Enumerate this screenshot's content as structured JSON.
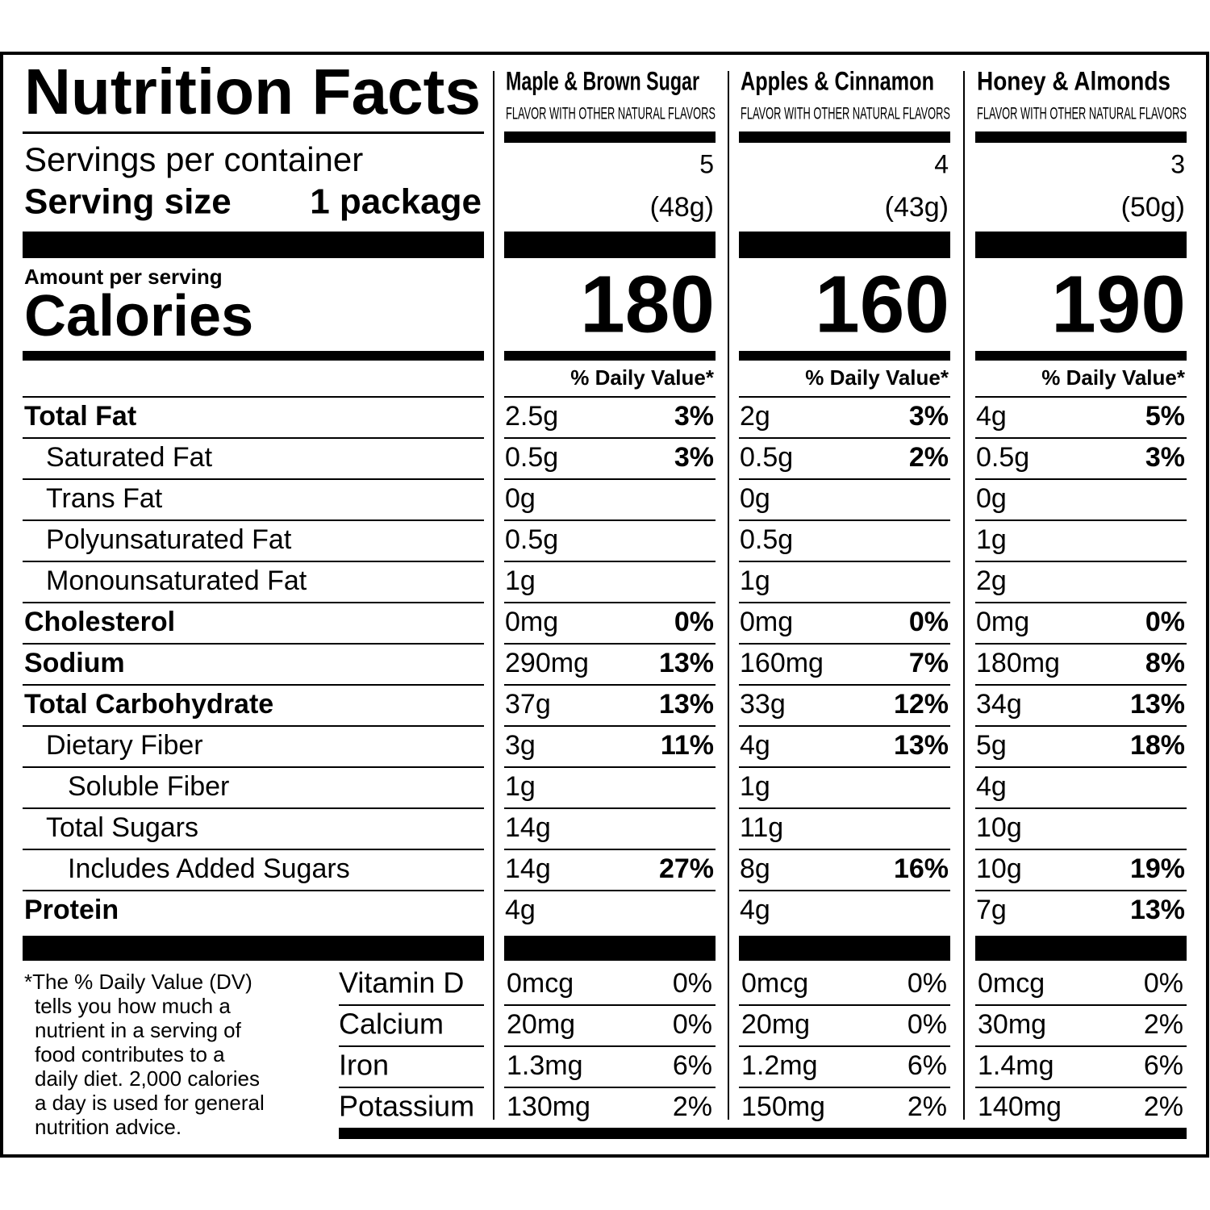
{
  "title": "Nutrition Facts",
  "servings_label": "Servings per container",
  "serving_size_label": "Serving size",
  "serving_size_value": "1 package",
  "amount_per_serving": "Amount per serving",
  "calories_label": "Calories",
  "daily_value_header": "% Daily Value*",
  "nutrients": [
    "Total Fat",
    "Saturated Fat",
    "Trans Fat",
    "Polyunsaturated Fat",
    "Monounsaturated Fat",
    "Cholesterol",
    "Sodium",
    "Total Carbohydrate",
    "Dietary Fiber",
    "Soluble Fiber",
    "Total Sugars",
    "Includes Added Sugars",
    "Protein"
  ],
  "vitamins": [
    "Vitamin D",
    "Calcium",
    "Iron",
    "Potassium"
  ],
  "footnote": [
    "*The % Daily Value (DV)",
    "tells you how much a",
    "nutrient in a serving of",
    "food contributes to a",
    "daily diet. 2,000 calories",
    "a day is used for general",
    "nutrition advice."
  ],
  "columns": [
    {
      "name": "Maple & Brown Sugar",
      "subtitle": "FLAVOR WITH OTHER NATURAL FLAVORS",
      "servings": "5",
      "serving_size": "(48g)",
      "calories": "180",
      "nutrients": [
        [
          "2.5g",
          "3%"
        ],
        [
          "0.5g",
          "3%"
        ],
        [
          "0g",
          null
        ],
        [
          "0.5g",
          null
        ],
        [
          "1g",
          null
        ],
        [
          "0mg",
          "0%"
        ],
        [
          "290mg",
          "13%"
        ],
        [
          "37g",
          "13%"
        ],
        [
          "3g",
          "11%"
        ],
        [
          "1g",
          null
        ],
        [
          "14g",
          null
        ],
        [
          "14g",
          "27%"
        ],
        [
          "4g",
          null
        ]
      ],
      "vitamins": [
        [
          "0mcg",
          "0%"
        ],
        [
          "20mg",
          "0%"
        ],
        [
          "1.3mg",
          "6%"
        ],
        [
          "130mg",
          "2%"
        ]
      ]
    },
    {
      "name": "Apples & Cinnamon",
      "subtitle": "FLAVOR WITH OTHER NATURAL FLAVORS",
      "servings": "4",
      "serving_size": "(43g)",
      "calories": "160",
      "nutrients": [
        [
          "2g",
          "3%"
        ],
        [
          "0.5g",
          "2%"
        ],
        [
          "0g",
          null
        ],
        [
          "0.5g",
          null
        ],
        [
          "1g",
          null
        ],
        [
          "0mg",
          "0%"
        ],
        [
          "160mg",
          "7%"
        ],
        [
          "33g",
          "12%"
        ],
        [
          "4g",
          "13%"
        ],
        [
          "1g",
          null
        ],
        [
          "11g",
          null
        ],
        [
          "8g",
          "16%"
        ],
        [
          "4g",
          null
        ]
      ],
      "vitamins": [
        [
          "0mcg",
          "0%"
        ],
        [
          "20mg",
          "0%"
        ],
        [
          "1.2mg",
          "6%"
        ],
        [
          "150mg",
          "2%"
        ]
      ]
    },
    {
      "name": "Honey & Almonds",
      "subtitle": "FLAVOR WITH OTHER NATURAL FLAVORS",
      "servings": "3",
      "serving_size": "(50g)",
      "calories": "190",
      "nutrients": [
        [
          "4g",
          "5%"
        ],
        [
          "0.5g",
          "3%"
        ],
        [
          "0g",
          null
        ],
        [
          "1g",
          null
        ],
        [
          "2g",
          null
        ],
        [
          "0mg",
          "0%"
        ],
        [
          "180mg",
          "8%"
        ],
        [
          "34g",
          "13%"
        ],
        [
          "5g",
          "18%"
        ],
        [
          "4g",
          null
        ],
        [
          "10g",
          null
        ],
        [
          "10g",
          "19%"
        ],
        [
          "7g",
          "13%"
        ]
      ],
      "vitamins": [
        [
          "0mcg",
          "0%"
        ],
        [
          "30mg",
          "2%"
        ],
        [
          "1.4mg",
          "6%"
        ],
        [
          "140mg",
          "2%"
        ]
      ]
    }
  ]
}
